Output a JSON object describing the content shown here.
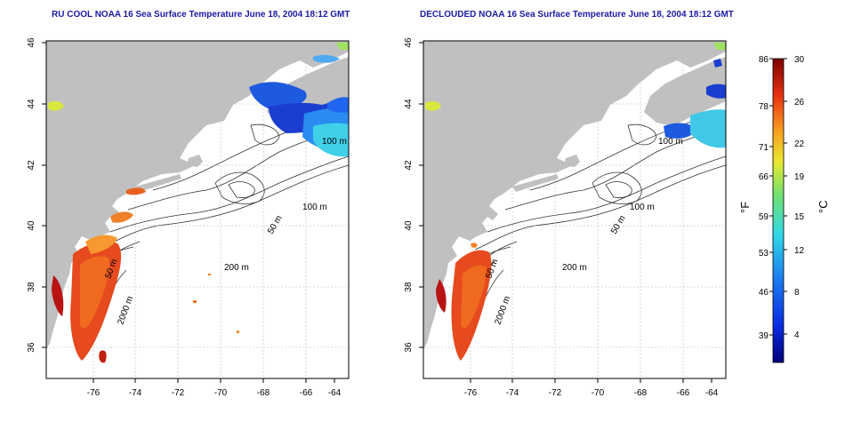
{
  "titles": {
    "left": "RU COOL NOAA 16 Sea Surface Temperature June 18, 2004 18:12 GMT",
    "right": "DECLOUDED NOAA 16 Sea Surface Temperature June 18, 2004 18:12 GMT"
  },
  "axes": {
    "lon_ticks": [
      "-76",
      "-74",
      "-72",
      "-70",
      "-68",
      "-66",
      "-64"
    ],
    "lat_ticks": [
      "36",
      "38",
      "40",
      "42",
      "44",
      "46"
    ]
  },
  "contour_labels": {
    "left": [
      "100 m",
      "100 m",
      "50 m",
      "200 m",
      "50 m",
      "2000 m"
    ],
    "right": [
      "100 m",
      "100 m",
      "50 m",
      "200 m",
      "50 m",
      "2000 m"
    ]
  },
  "colorbar": {
    "fahrenheit_ticks": [
      "86",
      "78",
      "71",
      "66",
      "59",
      "53",
      "46",
      "39"
    ],
    "celsius_ticks": [
      "30",
      "26",
      "22",
      "19",
      "15",
      "12",
      "8",
      "4"
    ],
    "unit_f": "°F",
    "unit_c": "°C"
  },
  "colors": {
    "land": "#c0c0c0",
    "ocean": "#ffffff",
    "title": "#1a1aa6",
    "warm": "#e8401a",
    "cold": "#1a5ad8"
  }
}
